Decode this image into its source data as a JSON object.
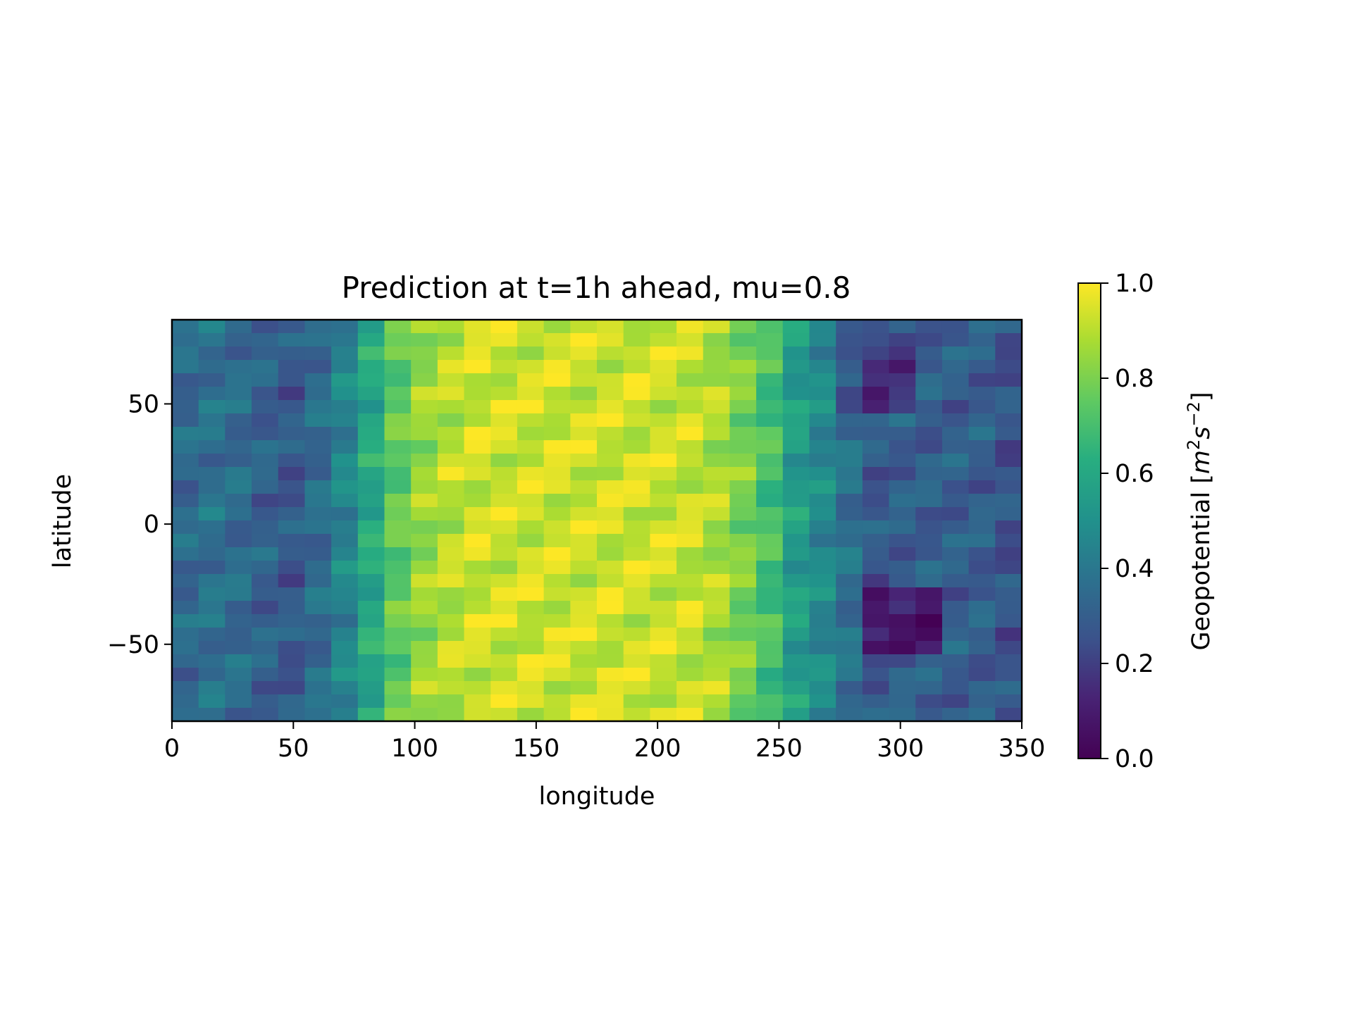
{
  "chart_data": {
    "type": "heatmap",
    "title": "Prediction at t=1h ahead, mu=0.8",
    "xlabel": "longitude",
    "ylabel": "latitude",
    "colorbar_label_prefix": "Geopotential [",
    "colorbar_unit": {
      "m": "m",
      "m_exp": "2",
      "s": "s",
      "s_exp": "−2"
    },
    "colorbar_label_suffix": "]",
    "colormap": "viridis",
    "xlim": [
      0,
      350
    ],
    "ylim": [
      -82,
      85
    ],
    "clim": [
      0.0,
      1.0
    ],
    "x_ticks": [
      0,
      50,
      100,
      150,
      200,
      250,
      300,
      350
    ],
    "x_tick_labels": [
      "0",
      "50",
      "100",
      "150",
      "200",
      "250",
      "300",
      "350"
    ],
    "y_ticks": [
      50,
      0,
      -50
    ],
    "y_tick_labels": [
      "50",
      "0",
      "−50"
    ],
    "colorbar_ticks": [
      1.0,
      0.8,
      0.6,
      0.4,
      0.2,
      0.0
    ],
    "colorbar_tick_labels": [
      "1.0",
      "0.8",
      "0.6",
      "0.4",
      "0.2",
      "0.0"
    ],
    "grid": false,
    "legend": "none",
    "column_profile": [
      0.34,
      0.37,
      0.35,
      0.31,
      0.28,
      0.35,
      0.45,
      0.6,
      0.75,
      0.85,
      0.9,
      0.93,
      0.93,
      0.93,
      0.93,
      0.93,
      0.93,
      0.93,
      0.93,
      0.92,
      0.88,
      0.8,
      0.7,
      0.55,
      0.47,
      0.37,
      0.28,
      0.3,
      0.3,
      0.3,
      0.3,
      0.26
    ],
    "value_range": [
      0.0,
      1.0
    ]
  }
}
